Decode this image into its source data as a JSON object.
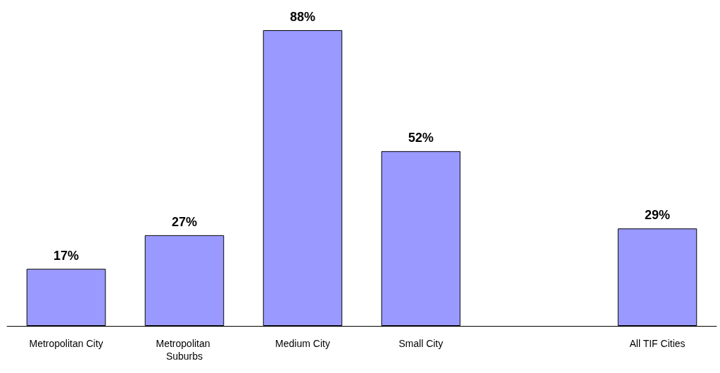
{
  "chart_data": {
    "type": "bar",
    "categories": [
      "Metropolitan City",
      "Metropolitan Suburbs",
      "Medium City",
      "Small City",
      null,
      "All TIF Cities"
    ],
    "values": [
      17,
      27,
      88,
      52,
      null,
      29
    ],
    "value_labels": [
      "17%",
      "27%",
      "88%",
      "52%",
      null,
      "29%"
    ],
    "color": "#9999ff"
  }
}
